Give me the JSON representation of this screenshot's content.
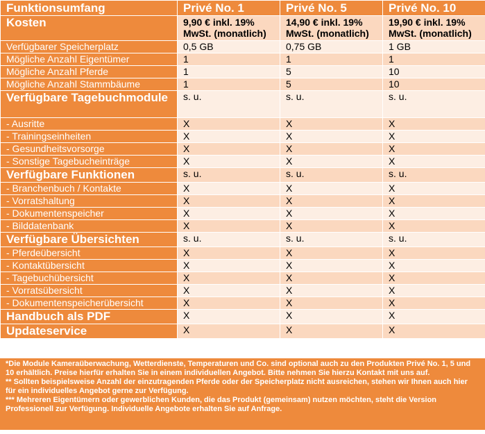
{
  "header": {
    "feature_col": "Funktionsumfang",
    "plans": [
      "Privé No. 1",
      "Privé No. 5",
      "Privé No. 10"
    ]
  },
  "rows": [
    {
      "label": "Kosten",
      "type": "big",
      "values": [
        "9,90 € inkl. 19% MwSt. (monatlich)",
        "14,90 € inkl. 19% MwSt. (monatlich)",
        "19,90 € inkl. 19% MwSt. (monatlich)"
      ]
    },
    {
      "label": "Verfügbarer Speicherplatz",
      "type": "small",
      "values": [
        "0,5 GB",
        "0,75 GB",
        "1 GB"
      ]
    },
    {
      "label": "Mögliche Anzahl Eigentümer",
      "type": "small",
      "values": [
        "1",
        "1",
        "1"
      ]
    },
    {
      "label": "Mögliche Anzahl Pferde",
      "type": "small",
      "values": [
        "1",
        "5",
        "10"
      ]
    },
    {
      "label": "Mögliche Anzahl Stammbäume",
      "type": "small",
      "values": [
        "1",
        "5",
        "10"
      ]
    },
    {
      "label": "Verfügbare Tagebuchmodule",
      "type": "big2",
      "values": [
        "s. u.",
        "s. u.",
        "s. u."
      ]
    },
    {
      "label": "- Ausritte",
      "type": "small",
      "values": [
        "X",
        "X",
        "X"
      ]
    },
    {
      "label": "- Trainingseinheiten",
      "type": "small",
      "values": [
        "X",
        "X",
        "X"
      ]
    },
    {
      "label": "- Gesundheitsvorsorge",
      "type": "small",
      "values": [
        "X",
        "X",
        "X"
      ]
    },
    {
      "label": "- Sonstige Tagebucheinträge",
      "type": "small",
      "values": [
        "X",
        "X",
        "X"
      ]
    },
    {
      "label": "Verfügbare Funktionen",
      "type": "bigline",
      "values": [
        "s. u.",
        "s. u.",
        "s. u."
      ]
    },
    {
      "label": "- Branchenbuch / Kontakte",
      "type": "small",
      "values": [
        "X",
        "X",
        "X"
      ]
    },
    {
      "label": "- Vorratshaltung",
      "type": "small",
      "values": [
        "X",
        "X",
        "X"
      ]
    },
    {
      "label": "- Dokumentenspeicher",
      "type": "small",
      "values": [
        "X",
        "X",
        "X"
      ]
    },
    {
      "label": "- Bilddatenbank",
      "type": "small",
      "values": [
        "X",
        "X",
        "X"
      ]
    },
    {
      "label": "Verfügbare Übersichten",
      "type": "bigline",
      "values": [
        "s. u.",
        "s. u.",
        "s. u."
      ]
    },
    {
      "label": "- Pferdeübersicht",
      "type": "small",
      "values": [
        "X",
        "X",
        "X"
      ]
    },
    {
      "label": "- Kontaktübersicht",
      "type": "small",
      "values": [
        "X",
        "X",
        "X"
      ]
    },
    {
      "label": "- Tagebuchübersicht",
      "type": "small",
      "values": [
        "X",
        "X",
        "X"
      ]
    },
    {
      "label": "- Vorratsübersicht",
      "type": "small",
      "values": [
        "X",
        "X",
        "X"
      ]
    },
    {
      "label": "- Dokumentenspeicherübersicht",
      "type": "small",
      "values": [
        "X",
        "X",
        "X"
      ]
    },
    {
      "label": "Handbuch als PDF",
      "type": "bigline",
      "values": [
        "X",
        "X",
        "X"
      ]
    },
    {
      "label": "Updateservice",
      "type": "bigline",
      "values": [
        "X",
        "X",
        "X"
      ]
    }
  ],
  "footnotes": [
    "*Die Module Kameraüberwachung, Wetterdienste, Temperaturen und Co. sind optional auch zu den Produkten Privé No. 1, 5 und 10 erhältlich. Preise hierfür erhalten Sie in einem individuellen Angebot. Bitte nehmen Sie hierzu Kontakt mit uns auf.",
    "** Sollten beispielsweise Anzahl der einzutragenden Pferde  oder der Speicherplatz nicht ausreichen, stehen wir Ihnen auch hier für ein individuelles Angebot gerne zur Verfügung.",
    "*** Mehreren Eigentümern oder gewerblichen Kunden, die das Produkt (gemeinsam) nutzen möchten, steht die Version Professionell zur Verfügung. Individuelle Angebote erhalten Sie auf Anfrage."
  ],
  "colors": {
    "accent": "#ee8a3c",
    "row_dark": "#fbd8bf",
    "row_light": "#fdeee3"
  }
}
